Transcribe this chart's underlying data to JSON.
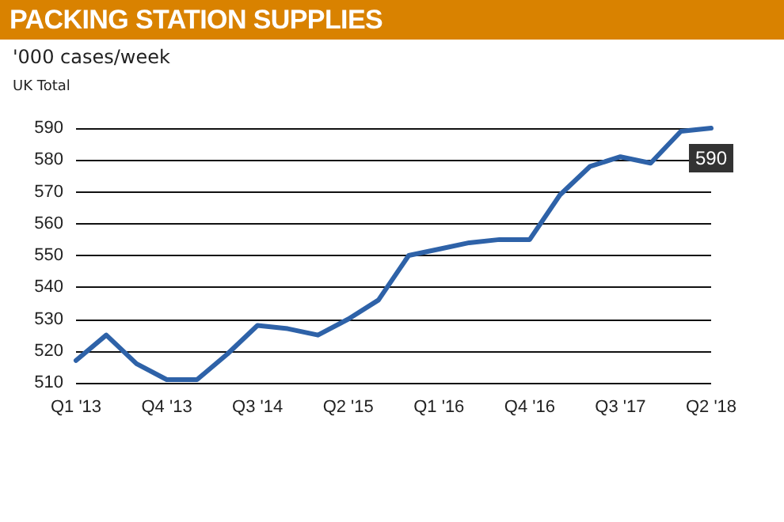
{
  "chart_data": {
    "type": "line",
    "title": "PACKING STATION SUPPLIES",
    "subtitle": "UK Total",
    "ylabel": "'000 cases/week",
    "categories": [
      "Q1 '13",
      null,
      null,
      "Q4 '13",
      null,
      null,
      "Q3 '14",
      null,
      null,
      "Q2 '15",
      null,
      null,
      "Q1 '16",
      null,
      null,
      "Q4 '16",
      null,
      null,
      "Q3 '17",
      null,
      null,
      "Q2 '18"
    ],
    "series": [
      {
        "color": "#2e62a8",
        "values": [
          517,
          525,
          516,
          511,
          511,
          519,
          528,
          527,
          525,
          530,
          536,
          550,
          552,
          554,
          555,
          555,
          569,
          578,
          581,
          579,
          589,
          590
        ],
        "value_labels": [
          null,
          null,
          null,
          null,
          null,
          null,
          null,
          null,
          null,
          null,
          null,
          null,
          null,
          null,
          null,
          null,
          null,
          null,
          null,
          null,
          null,
          "590"
        ]
      }
    ],
    "ylim": [
      510,
      590
    ],
    "yticks": [
      510,
      520,
      530,
      540,
      550,
      560,
      570,
      580,
      590
    ],
    "grid": "y",
    "marker": "none",
    "line_style": "solid"
  }
}
